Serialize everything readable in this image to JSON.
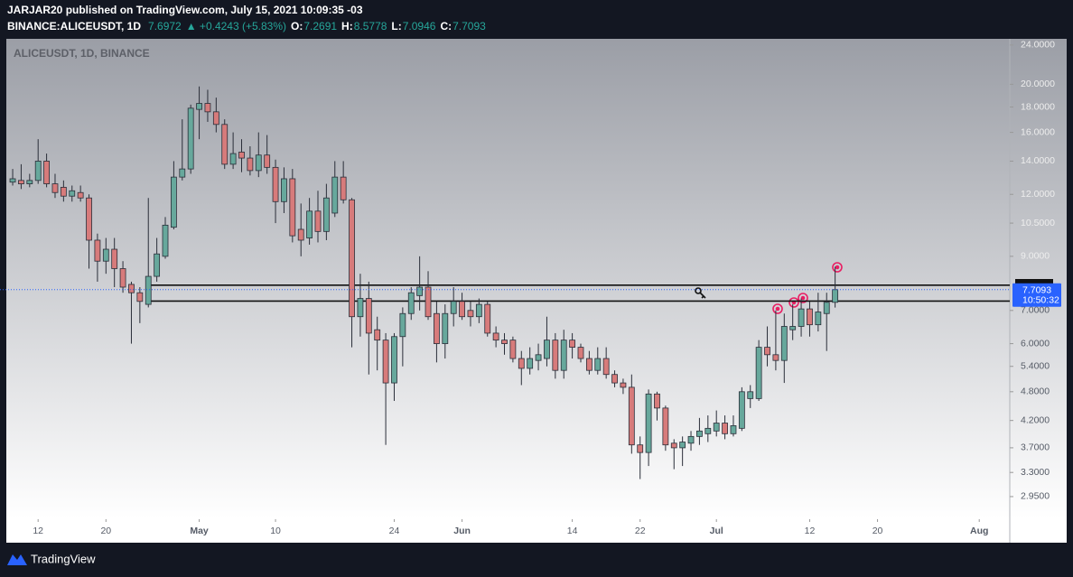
{
  "header": {
    "line1": "JARJAR20 published on TradingView.com, July 15, 2021 10:09:35 -03",
    "symbol": "BINANCE:ALICEUSDT, 1D",
    "price": "7.6972",
    "change": "▲ +0.4243 (+5.83%)",
    "ohlc": [
      {
        "label": "O:",
        "value": "7.2691"
      },
      {
        "label": "H:",
        "value": "8.5778"
      },
      {
        "label": "L:",
        "value": "7.0946"
      },
      {
        "label": "C:",
        "value": "7.7093"
      }
    ]
  },
  "chart_data": {
    "type": "candlestick",
    "title": "ALICEUSDT, 1D, BINANCE",
    "log_scale": true,
    "up_color": "#67a89c",
    "down_color": "#d77b7b",
    "open": [
      12.7,
      12.8,
      12.6,
      12.8,
      14.0,
      12.6,
      12.4,
      11.9,
      12.1,
      11.8,
      9.7,
      8.8,
      9.3,
      8.5,
      7.9,
      7.6,
      7.2,
      8.2,
      9.0,
      10.3,
      13.0,
      13.5,
      17.8,
      18.3,
      17.6,
      16.6,
      13.8,
      14.6,
      14.2,
      13.4,
      14.4,
      13.6,
      11.6,
      12.9,
      10.2,
      9.8,
      11.1,
      10.1,
      11.0,
      13.0,
      11.7,
      6.8,
      7.4,
      6.4,
      6.1,
      5.0,
      6.2,
      6.9,
      7.5,
      7.8,
      6.9,
      6.0,
      6.9,
      7.3,
      7.0,
      6.8,
      7.2,
      6.3,
      6.1,
      6.1,
      5.6,
      5.35,
      5.55,
      5.6,
      6.1,
      5.3,
      6.1,
      5.9,
      5.6,
      5.3,
      5.6,
      5.2,
      5.0,
      4.9,
      3.75,
      3.62,
      4.75,
      4.45,
      3.78,
      3.7,
      3.78,
      3.9,
      3.95,
      4.0,
      4.15,
      3.95,
      4.05,
      4.65,
      4.65,
      5.9,
      5.7,
      5.55,
      6.4,
      6.5,
      7.05,
      6.55,
      6.9,
      7.2691
    ],
    "high": [
      13.5,
      13.8,
      13.2,
      15.5,
      14.5,
      13.2,
      12.8,
      12.5,
      12.5,
      12.0,
      10.0,
      9.8,
      9.8,
      8.8,
      8.0,
      7.8,
      11.8,
      9.8,
      10.8,
      14.0,
      17.0,
      18.2,
      19.8,
      19.5,
      18.8,
      17.0,
      16.0,
      15.5,
      15.0,
      16.0,
      15.8,
      14.1,
      13.6,
      13.5,
      11.5,
      11.8,
      12.2,
      12.6,
      14.0,
      14.0,
      11.8,
      8.3,
      8.0,
      6.8,
      6.3,
      6.3,
      7.1,
      7.8,
      9.0,
      8.4,
      7.3,
      7.2,
      7.8,
      7.6,
      7.3,
      7.4,
      7.3,
      6.5,
      6.3,
      6.2,
      5.8,
      5.9,
      6.0,
      6.8,
      6.3,
      6.4,
      6.3,
      6.0,
      5.8,
      5.9,
      5.9,
      5.3,
      5.1,
      5.2,
      3.9,
      4.85,
      4.8,
      4.5,
      3.85,
      3.9,
      4.0,
      4.25,
      4.3,
      4.4,
      4.3,
      4.3,
      4.9,
      4.95,
      6.1,
      6.5,
      7.0,
      6.9,
      7.2,
      7.4,
      7.3,
      7.6,
      7.6,
      8.5778
    ],
    "low": [
      12.5,
      12.3,
      12.4,
      12.6,
      12.4,
      11.8,
      11.6,
      11.6,
      11.6,
      8.5,
      8.0,
      8.3,
      7.8,
      7.6,
      6.0,
      6.6,
      7.1,
      8.0,
      8.9,
      10.2,
      12.8,
      13.2,
      15.5,
      16.8,
      16.0,
      13.5,
      13.5,
      13.3,
      13.1,
      13.0,
      13.2,
      10.5,
      11.0,
      9.6,
      9.0,
      9.5,
      9.6,
      9.7,
      10.8,
      11.5,
      5.9,
      6.2,
      5.2,
      5.3,
      3.75,
      4.6,
      5.4,
      6.7,
      7.0,
      6.7,
      5.5,
      5.6,
      6.5,
      6.7,
      6.5,
      6.6,
      6.2,
      5.9,
      5.7,
      5.5,
      4.95,
      5.2,
      5.3,
      5.4,
      5.1,
      5.1,
      5.6,
      5.5,
      5.2,
      5.2,
      5.1,
      4.9,
      4.75,
      3.6,
      3.2,
      3.4,
      4.2,
      3.65,
      3.35,
      3.4,
      3.65,
      3.75,
      3.8,
      3.9,
      3.85,
      3.9,
      4.0,
      4.45,
      4.6,
      5.4,
      5.3,
      5.0,
      6.1,
      6.2,
      6.2,
      6.35,
      5.8,
      7.0946
    ],
    "close": [
      12.9,
      12.6,
      12.8,
      14.0,
      12.6,
      12.1,
      11.9,
      12.2,
      11.8,
      9.7,
      8.8,
      9.3,
      8.5,
      7.8,
      7.6,
      7.3,
      8.2,
      9.1,
      10.4,
      13.0,
      13.5,
      17.9,
      18.3,
      17.6,
      16.6,
      13.8,
      14.5,
      14.2,
      13.4,
      14.4,
      13.6,
      11.6,
      12.9,
      9.9,
      9.7,
      11.1,
      10.1,
      11.8,
      13.0,
      11.7,
      6.8,
      7.4,
      6.3,
      6.1,
      5.0,
      6.2,
      6.9,
      7.6,
      7.8,
      6.8,
      6.0,
      6.9,
      7.3,
      6.8,
      6.8,
      7.2,
      6.3,
      6.1,
      6.0,
      5.6,
      5.35,
      5.6,
      5.7,
      6.1,
      5.3,
      6.1,
      5.9,
      5.6,
      5.3,
      5.6,
      5.2,
      5.0,
      4.9,
      3.75,
      3.62,
      4.75,
      4.45,
      3.75,
      3.7,
      3.8,
      3.9,
      4.0,
      4.05,
      4.15,
      3.95,
      4.1,
      4.8,
      4.8,
      5.9,
      5.7,
      5.55,
      6.5,
      6.5,
      7.05,
      6.55,
      6.95,
      7.27,
      7.7093
    ],
    "zone": [
      7.31,
      7.87
    ],
    "countdown": "10:50:32",
    "ylim": [
      2.656,
      24.7
    ],
    "yticks": [
      {
        "value": 24,
        "label": "24.0000"
      },
      {
        "value": 20,
        "label": "20.0000"
      },
      {
        "value": 18,
        "label": "18.0000"
      },
      {
        "value": 16,
        "label": "16.0000"
      },
      {
        "value": 14,
        "label": "14.0000"
      },
      {
        "value": 12,
        "label": "12.0000"
      },
      {
        "value": 10.5,
        "label": "10.5000"
      },
      {
        "value": 9,
        "label": "9.0000"
      },
      {
        "value": 7,
        "label": "7.0000"
      },
      {
        "value": 6,
        "label": "6.0000"
      },
      {
        "value": 5.4,
        "label": "5.4000"
      },
      {
        "value": 4.8,
        "label": "4.8000"
      },
      {
        "value": 4.2,
        "label": "4.2000"
      },
      {
        "value": 3.7,
        "label": "3.7000"
      },
      {
        "value": 3.3,
        "label": "3.3000"
      },
      {
        "value": 2.95,
        "label": "2.9500"
      }
    ],
    "xlim": [
      -0.75,
      117.6
    ],
    "xticks": [
      {
        "value": 3,
        "label": "12"
      },
      {
        "value": 11,
        "label": "20"
      },
      {
        "value": 22,
        "label": "May"
      },
      {
        "value": 31,
        "label": "10"
      },
      {
        "value": 45,
        "label": "24"
      },
      {
        "value": 53,
        "label": "Jun"
      },
      {
        "value": 66,
        "label": "14"
      },
      {
        "value": 74,
        "label": "22"
      },
      {
        "value": 83,
        "label": "Jul"
      },
      {
        "value": 94,
        "label": "12"
      },
      {
        "value": 102,
        "label": "20"
      },
      {
        "value": 114,
        "label": "Aug"
      }
    ]
  },
  "footer": {
    "brand": "TradingView"
  }
}
